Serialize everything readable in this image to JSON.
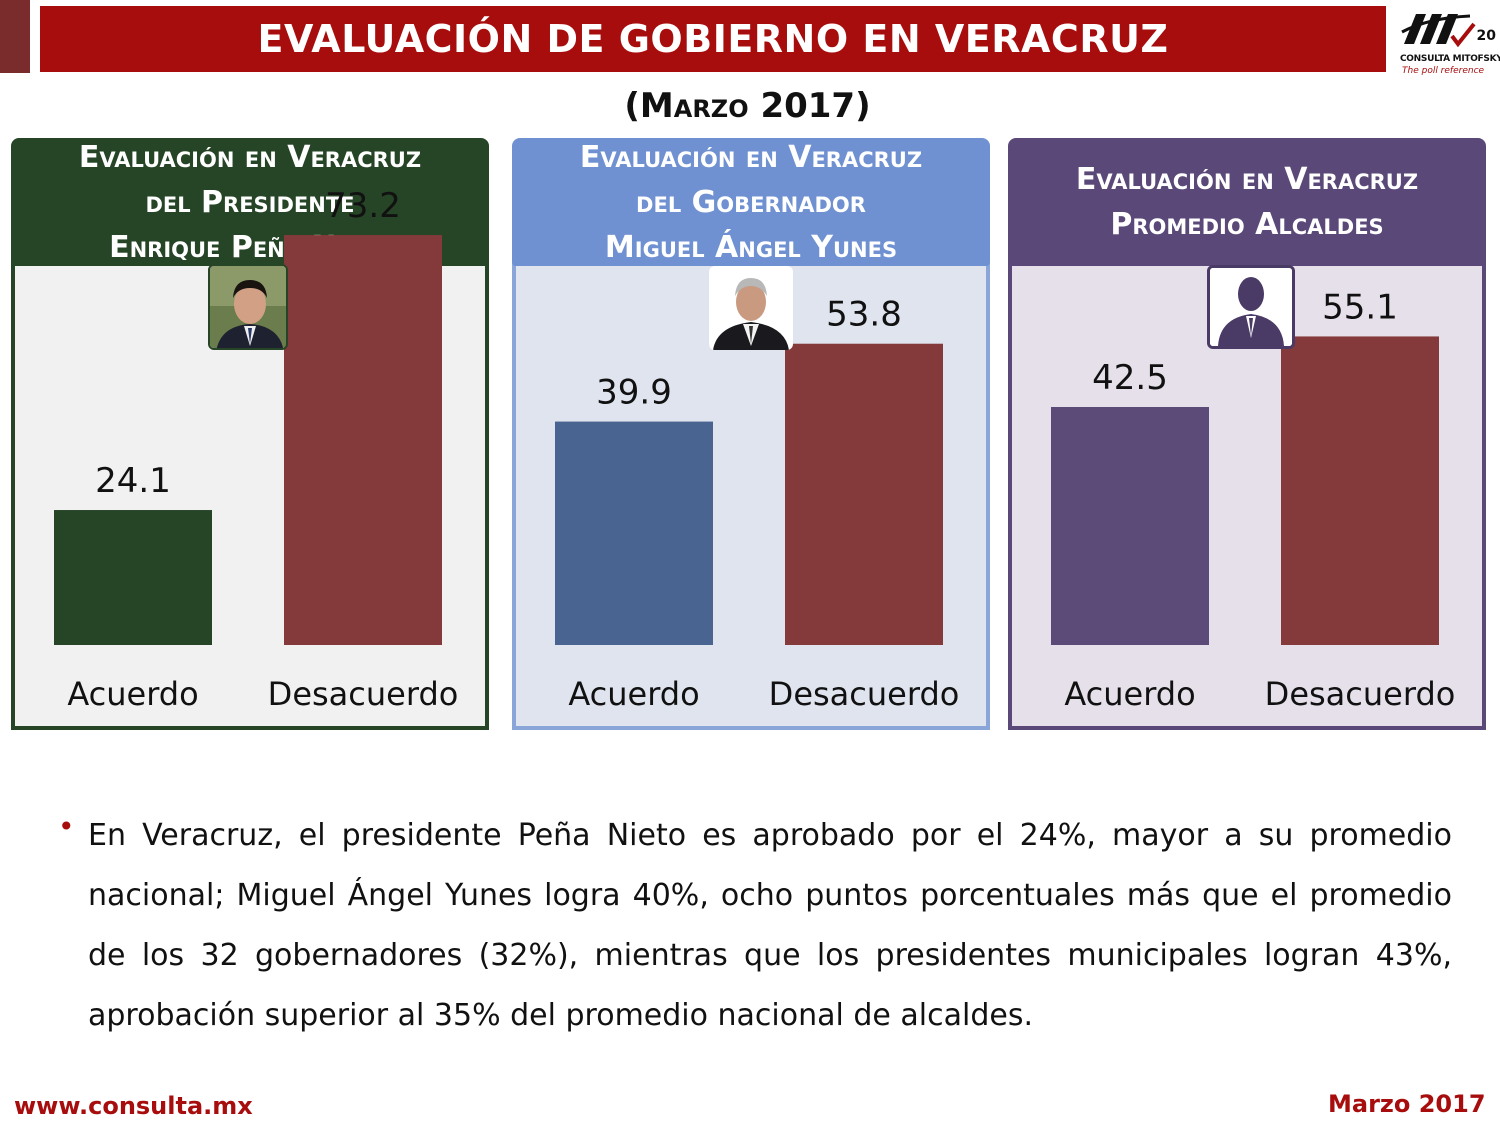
{
  "header": {
    "title": "EVALUACIÓN DE GOBIERNO EN VERACRUZ",
    "subtitle": "(Marzo 2017)",
    "logo": {
      "years": "20",
      "brand": "CONSULTA MITOFSKY",
      "tagline": "The poll reference"
    },
    "colors": {
      "title_bar": "#a80d0d",
      "side_block": "#7a2c2c"
    }
  },
  "panels": [
    {
      "heading": [
        "Evaluación en Veracruz",
        "del Presidente",
        "Enrique Peña Nieto"
      ],
      "portrait": "president-photo"
    },
    {
      "heading": [
        "Evaluación en Veracruz",
        "del Gobernador",
        "Miguel Ángel Yunes"
      ],
      "portrait": "governor-photo"
    },
    {
      "heading": [
        "Evaluación en Veracruz",
        "Promedio Alcaldes"
      ],
      "portrait": "mayor-silhouette-icon"
    }
  ],
  "chart_data": [
    {
      "type": "bar",
      "title": "Evaluación en Veracruz del Presidente Enrique Peña Nieto",
      "categories": [
        "Acuerdo",
        "Desacuerdo"
      ],
      "values": [
        24.1,
        73.2
      ],
      "colors": [
        "#264426",
        "#843a3a"
      ],
      "ylim": [
        0,
        80
      ],
      "grid": false
    },
    {
      "type": "bar",
      "title": "Evaluación en Veracruz del Gobernador Miguel Ángel Yunes",
      "categories": [
        "Acuerdo",
        "Desacuerdo"
      ],
      "values": [
        39.9,
        53.8
      ],
      "colors": [
        "#4a6491",
        "#843a3a"
      ],
      "ylim": [
        0,
        80
      ],
      "grid": false
    },
    {
      "type": "bar",
      "title": "Evaluación en Veracruz Promedio Alcaldes",
      "categories": [
        "Acuerdo",
        "Desacuerdo"
      ],
      "values": [
        42.5,
        55.1
      ],
      "colors": [
        "#5c4a78",
        "#843a3a"
      ],
      "ylim": [
        0,
        80
      ],
      "grid": false
    }
  ],
  "body_text": "En Veracruz, el presidente Peña Nieto es aprobado por el 24%, mayor a su promedio nacional; Miguel Ángel Yunes logra 40%, ocho puntos porcentuales más que el promedio de los 32 gobernadores (32%), mientras que los presidentes municipales logran 43%, aprobación superior al 35% del promedio nacional de alcaldes.",
  "footer": {
    "url": "www.consulta.mx",
    "date": "Marzo 2017"
  }
}
